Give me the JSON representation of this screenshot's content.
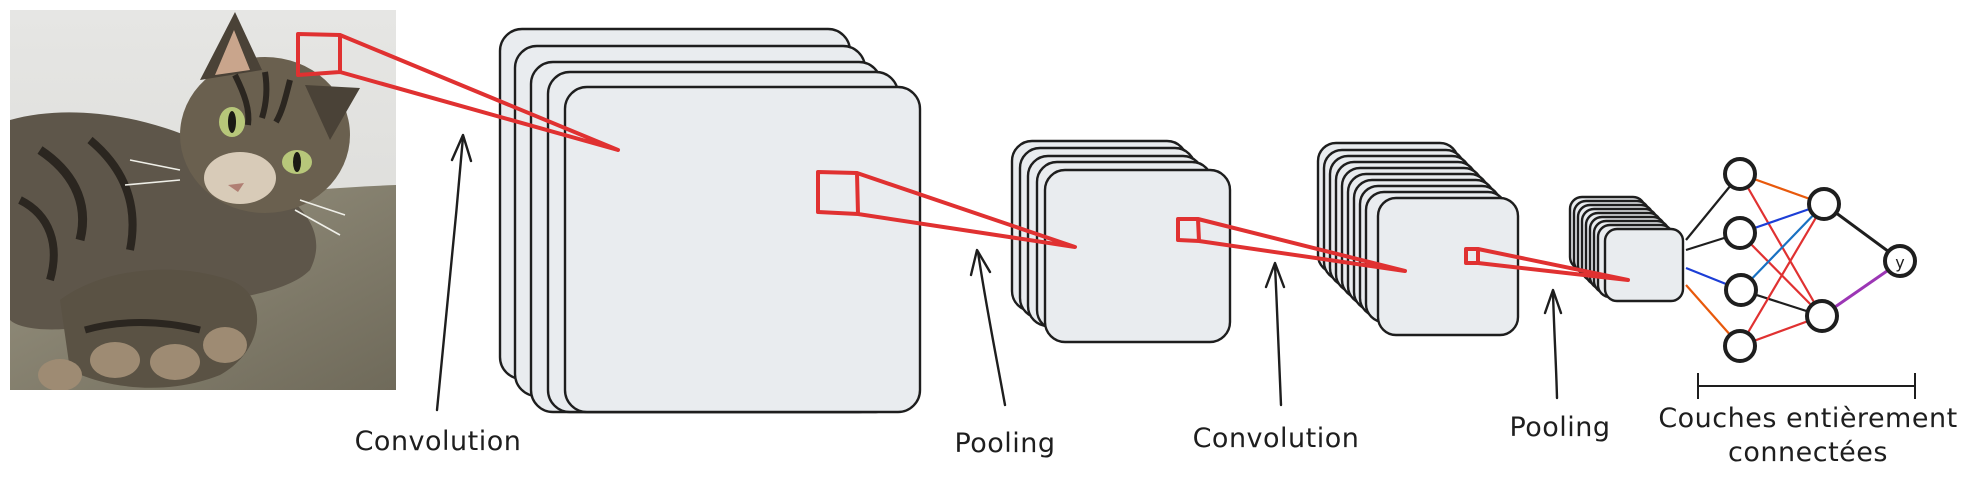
{
  "labels": {
    "convolution_1": "Convolution",
    "pooling_1": "Pooling",
    "convolution_2": "Convolution",
    "pooling_2": "Pooling",
    "fully_connected_line1": "Couches entièrement",
    "fully_connected_line2": "connectées",
    "output_node": "y"
  },
  "image": {
    "subject": "tabby-cat-photo"
  },
  "colors": {
    "layer_fill": "#e9ecef",
    "outline": "#1e1e1e",
    "kernel_red": "#e03131",
    "wire_black": "#1e1e1e",
    "wire_orange": "#e8590c",
    "wire_blue": "#1c3ed6",
    "wire_red": "#e03131",
    "wire_lightblue": "#1971c2",
    "wire_purple": "#9c36b5"
  },
  "network": {
    "layer_sizes": [
      4,
      2,
      1
    ]
  }
}
